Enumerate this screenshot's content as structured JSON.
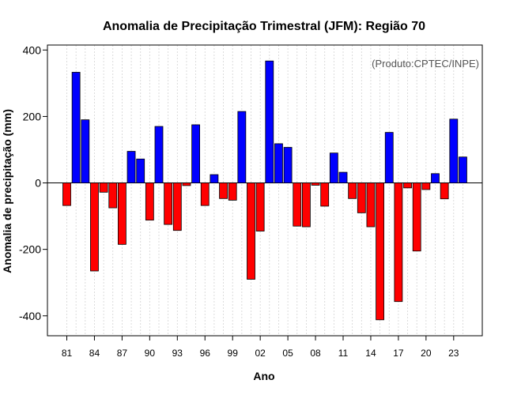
{
  "chart_data": {
    "type": "bar",
    "title": "Anomalia de Precipitação Trimestral (JFM): Região 70",
    "xlabel": "Ano",
    "ylabel": "Anomalia de precipitação (mm)",
    "credit": "(Produto:CPTEC/INPE)",
    "ylim": [
      -460,
      415
    ],
    "yticks": [
      400,
      200,
      0,
      -200,
      -400
    ],
    "ytick_labels": [
      "400",
      "200",
      "0",
      "-200",
      "-400"
    ],
    "xtick_years": [
      1981,
      1984,
      1987,
      1990,
      1993,
      1996,
      1999,
      2002,
      2005,
      2008,
      2011,
      2014,
      2017,
      2020,
      2023
    ],
    "xtick_labels": [
      "81",
      "84",
      "87",
      "90",
      "93",
      "96",
      "99",
      "02",
      "05",
      "08",
      "11",
      "14",
      "17",
      "20",
      "23"
    ],
    "grid": true,
    "positive_color": "#0000ff",
    "negative_color": "#ff0000",
    "years": [
      1981,
      1982,
      1983,
      1984,
      1985,
      1986,
      1987,
      1988,
      1989,
      1990,
      1991,
      1992,
      1993,
      1994,
      1995,
      1996,
      1997,
      1998,
      1999,
      2000,
      2001,
      2002,
      2003,
      2004,
      2005,
      2006,
      2007,
      2008,
      2009,
      2010,
      2011,
      2012,
      2013,
      2014,
      2015,
      2016,
      2017,
      2018,
      2019,
      2020,
      2021,
      2022,
      2023,
      2024
    ],
    "values": [
      -68,
      333,
      190,
      -265,
      -28,
      -75,
      -185,
      95,
      72,
      -112,
      170,
      -125,
      -143,
      -8,
      175,
      -68,
      25,
      -47,
      -52,
      215,
      -290,
      -145,
      367,
      118,
      107,
      -130,
      -132,
      -7,
      -70,
      90,
      32,
      -47,
      -90,
      -132,
      -412,
      152,
      -357,
      -15,
      -205,
      -20,
      28,
      -48,
      192,
      78
    ]
  }
}
